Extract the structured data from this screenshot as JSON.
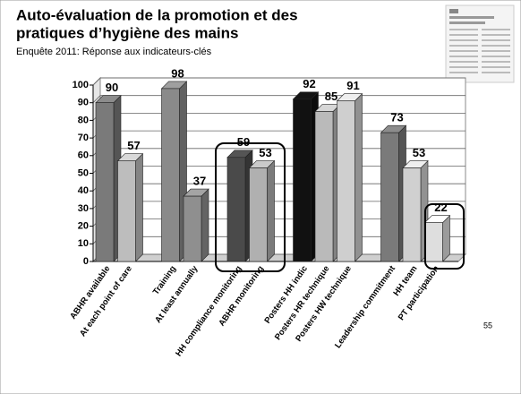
{
  "chart_data": {
    "type": "bar3d",
    "title_lines": [
      "Auto-évaluation de la promotion et  des",
      "pratiques d’hygiène des mains"
    ],
    "subtitle": "Enquête 2011: Réponse aux indicateurs-clés",
    "page_number": "55",
    "categories": [
      "ABHR available",
      "At each point of care",
      "Training",
      "At least annually",
      "HH compliance monitoring",
      "ABHR monitoring",
      "Posters HH indic",
      "Posters HR technique",
      "Posters HW technique",
      "Leadership commitment",
      "HH team",
      "PT participation"
    ],
    "values": [
      90,
      57,
      98,
      37,
      59,
      53,
      92,
      85,
      91,
      73,
      53,
      22
    ],
    "colors": [
      "#7a7a7a",
      "#bdbdbd",
      "#8a8a8a",
      "#8f8f8f",
      "#4a4a4a",
      "#b0b0b0",
      "#111111",
      "#bababa",
      "#cfcfcf",
      "#7a7a7a",
      "#d0d0d0",
      "#dedede"
    ],
    "ylim": [
      0,
      100
    ],
    "yticks": [
      0,
      10,
      20,
      30,
      40,
      50,
      60,
      70,
      80,
      90,
      100
    ],
    "grid": true
  }
}
